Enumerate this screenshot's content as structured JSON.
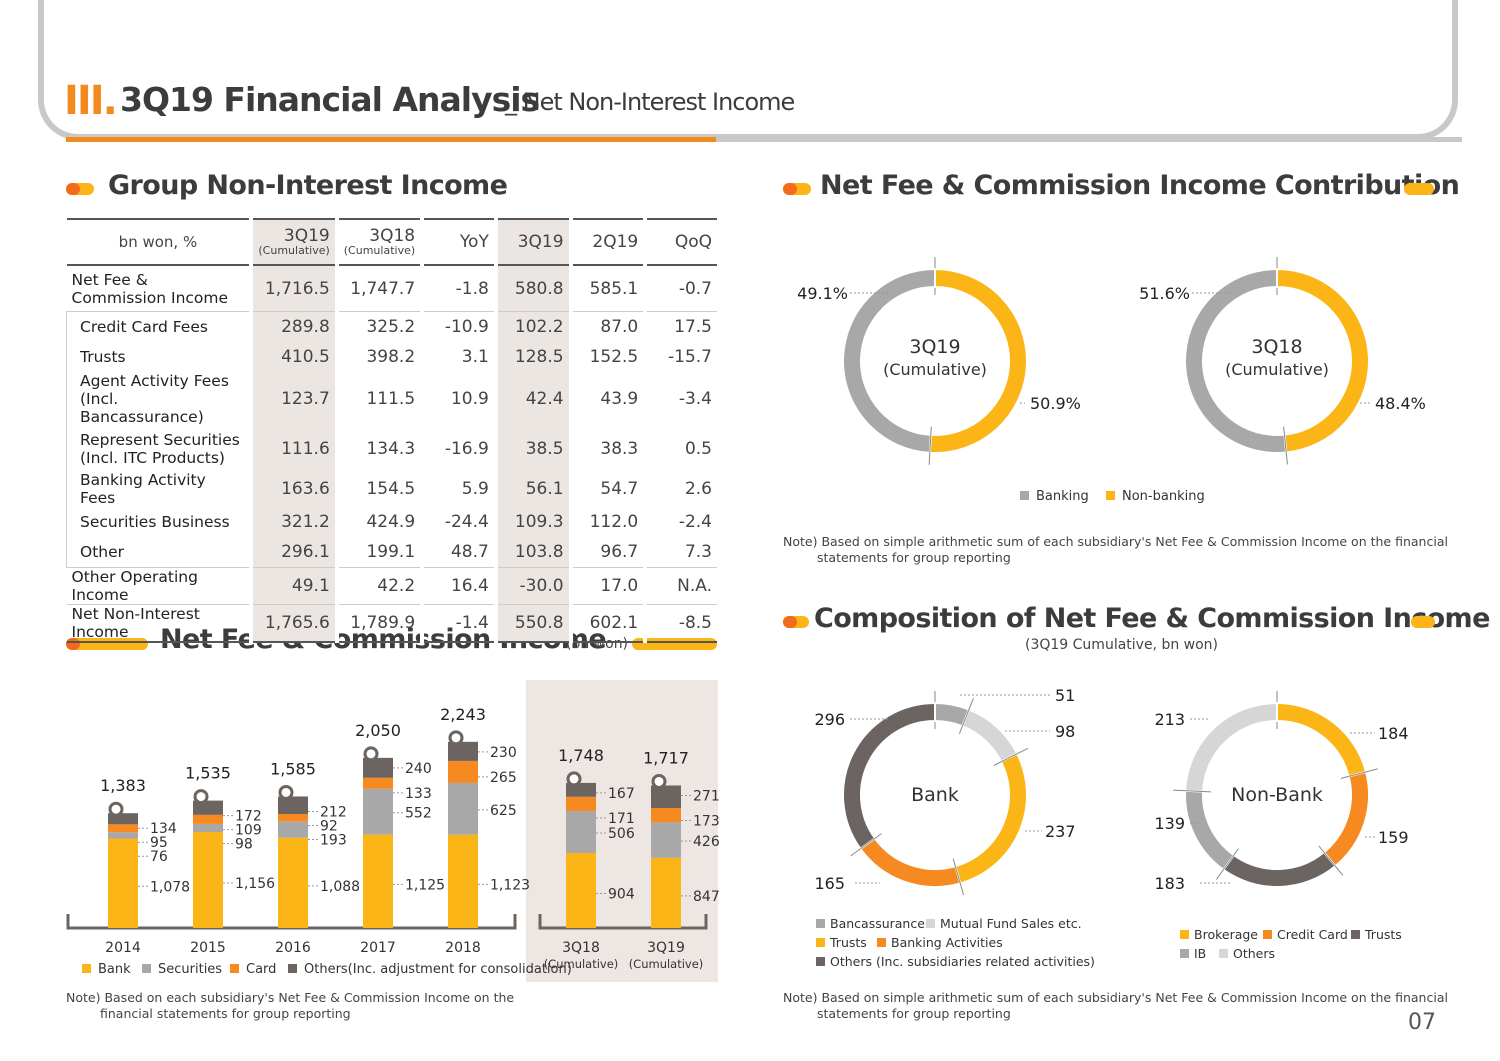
{
  "header": {
    "roman": "III.",
    "title": "3Q19 Financial Analysis",
    "subtitle": "_ Net Non-Interest Income"
  },
  "sections": {
    "group": "Group Non-Interest Income",
    "contrib": "Net Fee & Commission Income Contribution",
    "nfci": "Net Fee & Commission Income",
    "nfci_unit": "(bn won)",
    "comp": "Composition of Net Fee & Commission Income",
    "comp_sub": "(3Q19 Cumulative, bn won)"
  },
  "table": {
    "header": {
      "label": "bn won, %",
      "c1": "3Q19",
      "c1s": "(Cumulative)",
      "c2": "3Q18",
      "c2s": "(Cumulative)",
      "c3": "YoY",
      "c4": "3Q19",
      "c5": "2Q19",
      "c6": "QoQ"
    },
    "rows": [
      {
        "label": "Net Fee & Commission Income",
        "v": [
          "1,716.5",
          "1,747.7",
          "-1.8",
          "580.8",
          "585.1",
          "-0.7"
        ]
      },
      {
        "label": "Credit Card Fees",
        "v": [
          "289.8",
          "325.2",
          "-10.9",
          "102.2",
          "87.0",
          "17.5"
        ]
      },
      {
        "label": "Trusts",
        "v": [
          "410.5",
          "398.2",
          "3.1",
          "128.5",
          "152.5",
          "-15.7"
        ]
      },
      {
        "label": "Agent Activity Fees (Incl. Bancassurance)",
        "v": [
          "123.7",
          "111.5",
          "10.9",
          "42.4",
          "43.9",
          "-3.4"
        ]
      },
      {
        "label": "Represent Securities (Incl. ITC Products)",
        "v": [
          "111.6",
          "134.3",
          "-16.9",
          "38.5",
          "38.3",
          "0.5"
        ]
      },
      {
        "label": "Banking Activity Fees",
        "v": [
          "163.6",
          "154.5",
          "5.9",
          "56.1",
          "54.7",
          "2.6"
        ]
      },
      {
        "label": "Securities Business",
        "v": [
          "321.2",
          "424.9",
          "-24.4",
          "109.3",
          "112.0",
          "-2.4"
        ]
      },
      {
        "label": "Other",
        "v": [
          "296.1",
          "199.1",
          "48.7",
          "103.8",
          "96.7",
          "7.3"
        ]
      },
      {
        "label": "Other Operating Income",
        "v": [
          "49.1",
          "42.2",
          "16.4",
          "-30.0",
          "17.0",
          "N.A."
        ]
      },
      {
        "label": "Net Non-Interest Income",
        "v": [
          "1,765.6",
          "1,789.9",
          "-1.4",
          "550.8",
          "602.1",
          "-8.5"
        ]
      }
    ]
  },
  "chart_data": [
    {
      "type": "bar",
      "stacked": true,
      "title": "Net Fee & Commission Income",
      "ylabel": "bn won",
      "categories": [
        "2014",
        "2015",
        "2016",
        "2017",
        "2018",
        "3Q18 (Cumulative)",
        "3Q19 (Cumulative)"
      ],
      "totals": [
        "1,383",
        "1,535",
        "1,585",
        "2,050",
        "2,243",
        "1,748",
        "1,717"
      ],
      "series": [
        {
          "name": "Bank",
          "color": "#fbb516",
          "values": [
            1078,
            1156,
            1088,
            1125,
            1123,
            904,
            847
          ]
        },
        {
          "name": "Securities",
          "color": "#a8a8a8",
          "values": [
            76,
            98,
            193,
            552,
            625,
            506,
            426
          ]
        },
        {
          "name": "Card",
          "color": "#f68a21",
          "values": [
            95,
            109,
            92,
            133,
            265,
            171,
            173
          ]
        },
        {
          "name": "Others(Inc. adjustment for consolidation)",
          "color": "#6b6460",
          "values": [
            134,
            172,
            212,
            240,
            230,
            167,
            271
          ]
        }
      ]
    },
    {
      "type": "pie",
      "donut": true,
      "label": "3Q19",
      "sublabel": "(Cumulative)",
      "series": [
        {
          "name": "Non-banking",
          "value": 50.9,
          "label": "50.9%",
          "color": "#fbb516"
        },
        {
          "name": "Banking",
          "value": 49.1,
          "label": "49.1%",
          "color": "#a8a8a8"
        }
      ]
    },
    {
      "type": "pie",
      "donut": true,
      "label": "3Q18",
      "sublabel": "(Cumulative)",
      "series": [
        {
          "name": "Non-banking",
          "value": 48.4,
          "label": "48.4%",
          "color": "#fbb516"
        },
        {
          "name": "Banking",
          "value": 51.6,
          "label": "51.6%",
          "color": "#a8a8a8"
        }
      ]
    },
    {
      "type": "pie",
      "donut": true,
      "label": "Bank",
      "series": [
        {
          "name": "Bancassurance",
          "value": 51,
          "label": "51",
          "color": "#a8a8a8"
        },
        {
          "name": "Mutual Fund Sales etc.",
          "value": 98,
          "label": "98",
          "color": "#d6d6d6"
        },
        {
          "name": "Trusts",
          "value": 237,
          "label": "237",
          "color": "#fbb516"
        },
        {
          "name": "Banking Activities",
          "value": 165,
          "label": "165",
          "color": "#f68a21"
        },
        {
          "name": "Others (Inc. subsidiaries related activities)",
          "value": 296,
          "label": "296",
          "color": "#6b6460"
        }
      ]
    },
    {
      "type": "pie",
      "donut": true,
      "label": "Non-Bank",
      "series": [
        {
          "name": "Brokerage",
          "value": 184,
          "label": "184",
          "color": "#fbb516"
        },
        {
          "name": "Credit Card",
          "value": 159,
          "label": "159",
          "color": "#f68a21"
        },
        {
          "name": "Trusts",
          "value": 183,
          "label": "183",
          "color": "#6b6460"
        },
        {
          "name": "IB",
          "value": 139,
          "label": "139",
          "color": "#a8a8a8"
        },
        {
          "name": "Others",
          "value": 213,
          "label": "213",
          "color": "#d6d6d6"
        }
      ]
    }
  ],
  "legends": {
    "bar": [
      "Bank",
      "Securities",
      "Card",
      "Others(Inc. adjustment for consolidation)"
    ],
    "contrib": [
      "Banking",
      "Non-banking"
    ],
    "bank": [
      "Bancassurance",
      "Mutual Fund Sales etc.",
      "Trusts",
      "Banking Activities",
      "Others (Inc. subsidiaries related activities)"
    ],
    "nonbank": [
      "Brokerage",
      "Credit Card",
      "Trusts",
      "IB",
      "Others"
    ]
  },
  "bar_inner_labels": [
    [
      "1,078",
      "76",
      "95",
      "134"
    ],
    [
      "1,156",
      "98",
      "109",
      "172"
    ],
    [
      "1,088",
      "193",
      "92",
      "212"
    ],
    [
      "1,125",
      "552",
      "133",
      "240"
    ],
    [
      "1,123",
      "625",
      "265",
      "230"
    ],
    [
      "904",
      "506",
      "171",
      "167"
    ],
    [
      "847",
      "426",
      "173",
      "271"
    ]
  ],
  "bar_axis_labels": [
    [
      "2014",
      ""
    ],
    [
      "2015",
      ""
    ],
    [
      "2016",
      ""
    ],
    [
      "2017",
      ""
    ],
    [
      "2018",
      ""
    ],
    [
      "3Q18",
      "(Cumulative)"
    ],
    [
      "3Q19",
      "(Cumulative)"
    ]
  ],
  "notes": {
    "left": "Note) Based on each subsidiary's Net Fee & Commission Income on the",
    "left2": "financial statements for group reporting",
    "right": "Note) Based on simple arithmetic sum of each subsidiary's Net Fee & Commission Income on the financial",
    "right2": "statements for group reporting"
  },
  "page": "07"
}
